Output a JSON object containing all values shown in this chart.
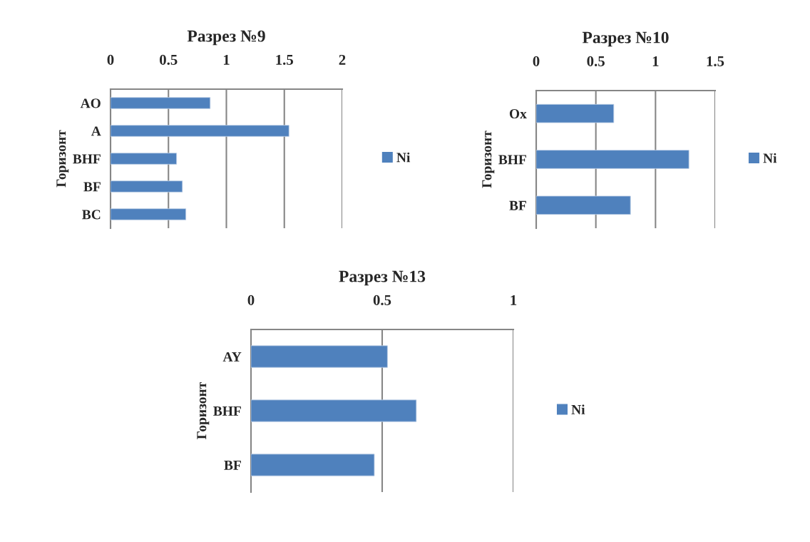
{
  "chart_data": [
    {
      "type": "bar",
      "orientation": "horizontal",
      "title": "Разрез №9",
      "ylabel": "Горизонт",
      "categories": [
        "AO",
        "A",
        "BHF",
        "BF",
        "BC"
      ],
      "series": [
        {
          "name": "Ni",
          "color": "#4f81bd",
          "values": [
            0.86,
            1.54,
            0.57,
            0.62,
            0.65
          ]
        }
      ],
      "xlim": [
        0,
        2
      ],
      "xticks": [
        0,
        0.5,
        1,
        1.5,
        2
      ],
      "grid": "x",
      "legend": "right"
    },
    {
      "type": "bar",
      "orientation": "horizontal",
      "title": "Разрез №10",
      "ylabel": "Горизонт",
      "categories": [
        "Ox",
        "BHF",
        "BF"
      ],
      "series": [
        {
          "name": "Ni",
          "color": "#4f81bd",
          "values": [
            0.65,
            1.28,
            0.79
          ]
        }
      ],
      "xlim": [
        0,
        1.5
      ],
      "xticks": [
        0,
        0.5,
        1,
        1.5
      ],
      "grid": "x",
      "legend": "right"
    },
    {
      "type": "bar",
      "orientation": "horizontal",
      "title": "Разрез №13",
      "ylabel": "Горизонт",
      "categories": [
        "AY",
        "BHF",
        "BF"
      ],
      "series": [
        {
          "name": "Ni",
          "color": "#4f81bd",
          "values": [
            0.52,
            0.63,
            0.47
          ]
        }
      ],
      "xlim": [
        0,
        1
      ],
      "xticks": [
        0,
        0.5,
        1
      ],
      "grid": "x",
      "legend": "right"
    }
  ]
}
